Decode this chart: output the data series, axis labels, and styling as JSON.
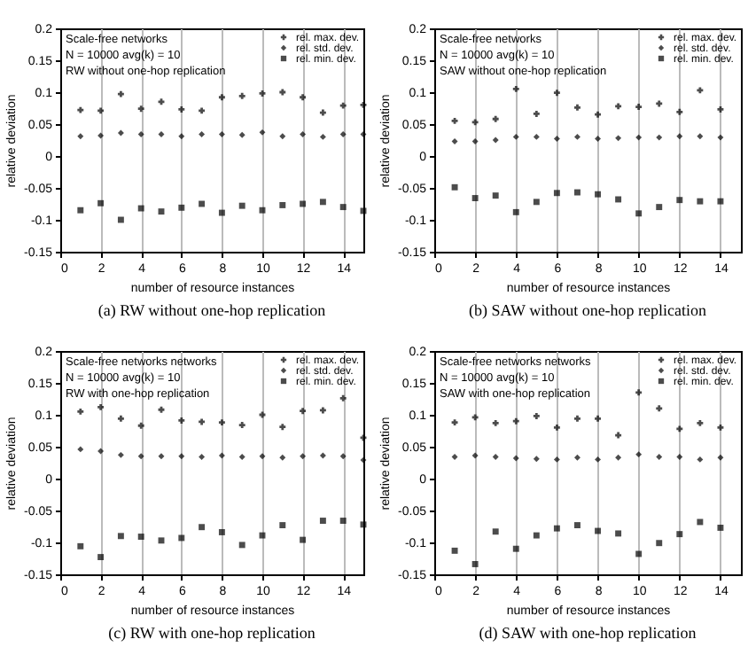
{
  "chart_data": [
    {
      "type": "scatter",
      "title": "(a) RW without one-hop replication",
      "xlabel": "number of resource instances",
      "ylabel": "relative deviation",
      "annotations": [
        "Scale-free networks",
        "N = 10000   avg(k) = 10",
        "RW without one-hop replication"
      ],
      "x": [
        1,
        2,
        3,
        4,
        5,
        6,
        7,
        8,
        9,
        10,
        11,
        12,
        13,
        14,
        15
      ],
      "xlim": [
        0,
        15
      ],
      "xticks": [
        0,
        2,
        4,
        6,
        8,
        10,
        12,
        14
      ],
      "ylim": [
        -0.15,
        0.2
      ],
      "yticks": [
        -0.15,
        -0.1,
        -0.05,
        0,
        0.05,
        0.1,
        0.15,
        0.2
      ],
      "grid": "x",
      "legend": "top right",
      "series": [
        {
          "name": "rel. max. dev.",
          "color": "#000000",
          "marker": "cross",
          "values": [
            0.072,
            0.071,
            0.097,
            0.074,
            0.085,
            0.073,
            0.071,
            0.092,
            0.094,
            0.098,
            0.1,
            0.092,
            0.068,
            0.079,
            0.08
          ]
        },
        {
          "name": "rel. std. dev.",
          "color": "#000000",
          "marker": "diamond",
          "values": [
            0.031,
            0.032,
            0.036,
            0.034,
            0.034,
            0.031,
            0.034,
            0.034,
            0.033,
            0.037,
            0.031,
            0.034,
            0.03,
            0.034,
            0.034
          ]
        },
        {
          "name": "rel. min. dev.",
          "color": "#000000",
          "marker": "square",
          "values": [
            -0.085,
            -0.074,
            -0.1,
            -0.082,
            -0.087,
            -0.081,
            -0.075,
            -0.089,
            -0.078,
            -0.085,
            -0.077,
            -0.075,
            -0.072,
            -0.08,
            -0.086
          ]
        }
      ]
    },
    {
      "type": "scatter",
      "title": "(b) SAW without one-hop replication",
      "xlabel": "number of resource instances",
      "ylabel": "relative deviation",
      "annotations": [
        "Scale-free networks",
        "N = 10000   avg(k) = 10",
        "SAW without one-hop replication"
      ],
      "x": [
        1,
        2,
        3,
        4,
        5,
        6,
        7,
        8,
        9,
        10,
        11,
        12,
        13,
        14
      ],
      "xlim": [
        0,
        15
      ],
      "xticks": [
        0,
        2,
        4,
        6,
        8,
        10,
        12,
        14
      ],
      "ylim": [
        -0.15,
        0.2
      ],
      "yticks": [
        -0.15,
        -0.1,
        -0.05,
        0,
        0.05,
        0.1,
        0.15,
        0.2
      ],
      "grid": "x",
      "legend": "top right",
      "series": [
        {
          "name": "rel. max. dev.",
          "color": "#000000",
          "marker": "cross",
          "values": [
            0.055,
            0.053,
            0.058,
            0.105,
            0.066,
            0.099,
            0.076,
            0.065,
            0.078,
            0.077,
            0.082,
            0.069,
            0.103,
            0.073
          ]
        },
        {
          "name": "rel. std. dev.",
          "color": "#000000",
          "marker": "diamond",
          "values": [
            0.023,
            0.023,
            0.025,
            0.03,
            0.03,
            0.027,
            0.03,
            0.027,
            0.028,
            0.029,
            0.029,
            0.031,
            0.031,
            0.029
          ]
        },
        {
          "name": "rel. min. dev.",
          "color": "#000000",
          "marker": "square",
          "values": [
            -0.049,
            -0.066,
            -0.062,
            -0.088,
            -0.072,
            -0.058,
            -0.057,
            -0.06,
            -0.068,
            -0.09,
            -0.08,
            -0.069,
            -0.071,
            -0.071
          ]
        }
      ]
    },
    {
      "type": "scatter",
      "title": "(c) RW with one-hop replication",
      "xlabel": "number of resource instances",
      "ylabel": "relative deviation",
      "annotations": [
        "Scale-free networks networks",
        "N = 10000   avg(k) = 10",
        "RW with one-hop replication"
      ],
      "x": [
        1,
        2,
        3,
        4,
        5,
        6,
        7,
        8,
        9,
        10,
        11,
        12,
        13,
        14,
        15
      ],
      "xlim": [
        0,
        15
      ],
      "xticks": [
        0,
        2,
        4,
        6,
        8,
        10,
        12,
        14
      ],
      "ylim": [
        -0.15,
        0.2
      ],
      "yticks": [
        -0.15,
        -0.1,
        -0.05,
        0,
        0.05,
        0.1,
        0.15,
        0.2
      ],
      "grid": "x",
      "legend": "top right",
      "series": [
        {
          "name": "rel. max. dev.",
          "color": "#000000",
          "marker": "cross",
          "values": [
            0.105,
            0.112,
            0.094,
            0.083,
            0.108,
            0.091,
            0.089,
            0.088,
            0.084,
            0.1,
            0.081,
            0.106,
            0.107,
            0.126,
            0.064
          ]
        },
        {
          "name": "rel. std. dev.",
          "color": "#000000",
          "marker": "diamond",
          "values": [
            0.046,
            0.043,
            0.037,
            0.035,
            0.035,
            0.035,
            0.034,
            0.036,
            0.034,
            0.035,
            0.033,
            0.035,
            0.036,
            0.035,
            0.029
          ]
        },
        {
          "name": "rel. min. dev.",
          "color": "#000000",
          "marker": "square",
          "values": [
            -0.106,
            -0.123,
            -0.09,
            -0.091,
            -0.097,
            -0.093,
            -0.076,
            -0.084,
            -0.104,
            -0.089,
            -0.073,
            -0.096,
            -0.066,
            -0.066,
            -0.072
          ]
        }
      ]
    },
    {
      "type": "scatter",
      "title": "(d) SAW with one-hop replication",
      "xlabel": "number of resource instances",
      "ylabel": "relative deviation",
      "annotations": [
        "Scale-free networks networks",
        "N = 10000   avg(k) = 10",
        "SAW with one-hop replication"
      ],
      "x": [
        1,
        2,
        3,
        4,
        5,
        6,
        7,
        8,
        9,
        10,
        11,
        12,
        13,
        14
      ],
      "xlim": [
        0,
        15
      ],
      "xticks": [
        0,
        2,
        4,
        6,
        8,
        10,
        12,
        14
      ],
      "ylim": [
        -0.15,
        0.2
      ],
      "yticks": [
        -0.15,
        -0.1,
        -0.05,
        0,
        0.05,
        0.1,
        0.15,
        0.2
      ],
      "grid": "x",
      "legend": "top right",
      "series": [
        {
          "name": "rel. max. dev.",
          "color": "#000000",
          "marker": "cross",
          "values": [
            0.088,
            0.096,
            0.087,
            0.09,
            0.098,
            0.08,
            0.094,
            0.094,
            0.068,
            0.135,
            0.11,
            0.078,
            0.087,
            0.08
          ]
        },
        {
          "name": "rel. std. dev.",
          "color": "#000000",
          "marker": "diamond",
          "values": [
            0.034,
            0.036,
            0.034,
            0.032,
            0.031,
            0.03,
            0.033,
            0.03,
            0.033,
            0.038,
            0.034,
            0.034,
            0.03,
            0.033
          ]
        },
        {
          "name": "rel. min. dev.",
          "color": "#000000",
          "marker": "square",
          "values": [
            -0.113,
            -0.134,
            -0.083,
            -0.11,
            -0.089,
            -0.078,
            -0.073,
            -0.082,
            -0.086,
            -0.118,
            -0.101,
            -0.087,
            -0.068,
            -0.077
          ]
        }
      ]
    }
  ]
}
